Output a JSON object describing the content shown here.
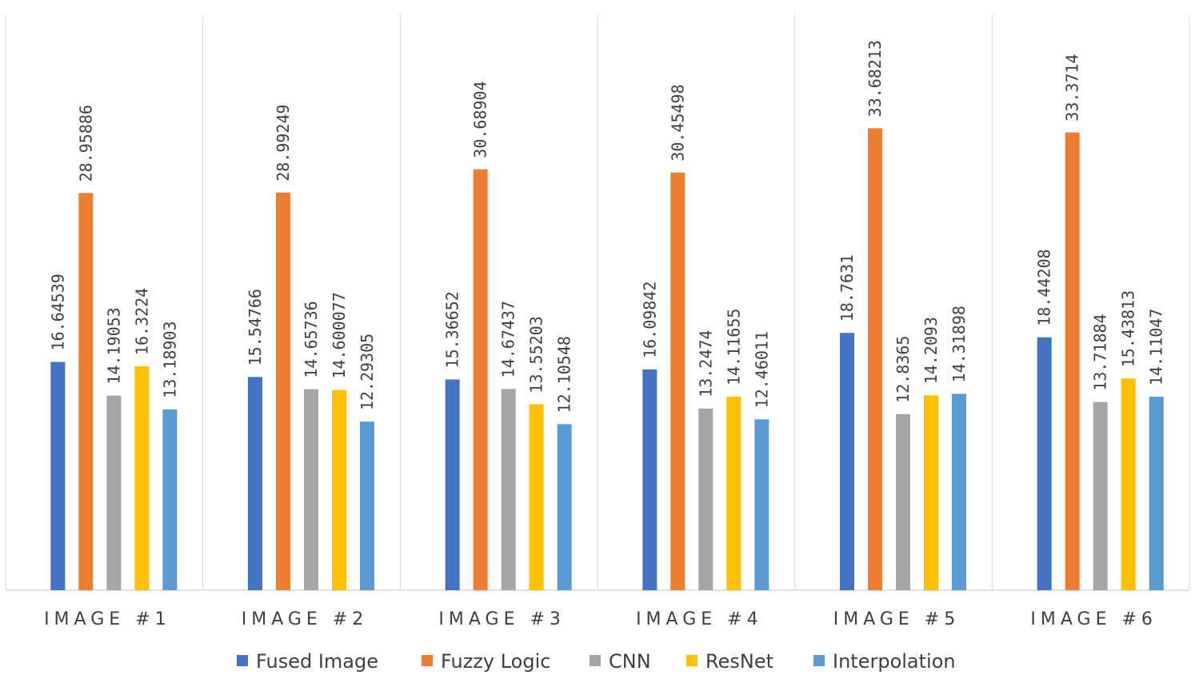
{
  "chart_data": {
    "type": "bar",
    "categories": [
      "IMAGE #1",
      "IMAGE #2",
      "IMAGE #3",
      "IMAGE #4",
      "IMAGE #5",
      "IMAGE #6"
    ],
    "series": [
      {
        "name": "Fused Image",
        "color": "#4472C4",
        "values": [
          16.64539,
          15.54766,
          15.36652,
          16.09842,
          18.7631,
          18.44208
        ],
        "labels": [
          "16.64539",
          "15.54766",
          "15.36652",
          "16.09842",
          "18.7631",
          "18.44208"
        ]
      },
      {
        "name": "Fuzzy Logic",
        "color": "#ED7D31",
        "values": [
          28.95886,
          28.99249,
          30.68904,
          30.45498,
          33.68213,
          33.3714
        ],
        "labels": [
          "28.95886",
          "28.99249",
          "30.68904",
          "30.45498",
          "33.68213",
          "33.3714"
        ]
      },
      {
        "name": "CNN",
        "color": "#A5A5A5",
        "values": [
          14.19053,
          14.65736,
          14.67437,
          13.2474,
          12.8365,
          13.71884
        ],
        "labels": [
          "14.19053",
          "14.65736",
          "14.67437",
          "13.2474",
          "12.8365",
          "13.71884"
        ]
      },
      {
        "name": "ResNet",
        "color": "#FFC000",
        "values": [
          16.3224,
          14.600077,
          13.55203,
          14.11655,
          14.2093,
          15.43813
        ],
        "labels": [
          "16.3224",
          "14.600077",
          "13.55203",
          "14.11655",
          "14.2093",
          "15.43813"
        ]
      },
      {
        "name": "Interpolation",
        "color": "#5B9BD5",
        "values": [
          13.18903,
          12.29305,
          12.10548,
          12.46011,
          14.31898,
          14.11047
        ],
        "labels": [
          "13.18903",
          "12.29305",
          "12.10548",
          "12.46011",
          "14.31898",
          "14.11047"
        ]
      }
    ],
    "ylim": [
      0,
      34
    ],
    "grid": false,
    "legend": "bottom"
  }
}
